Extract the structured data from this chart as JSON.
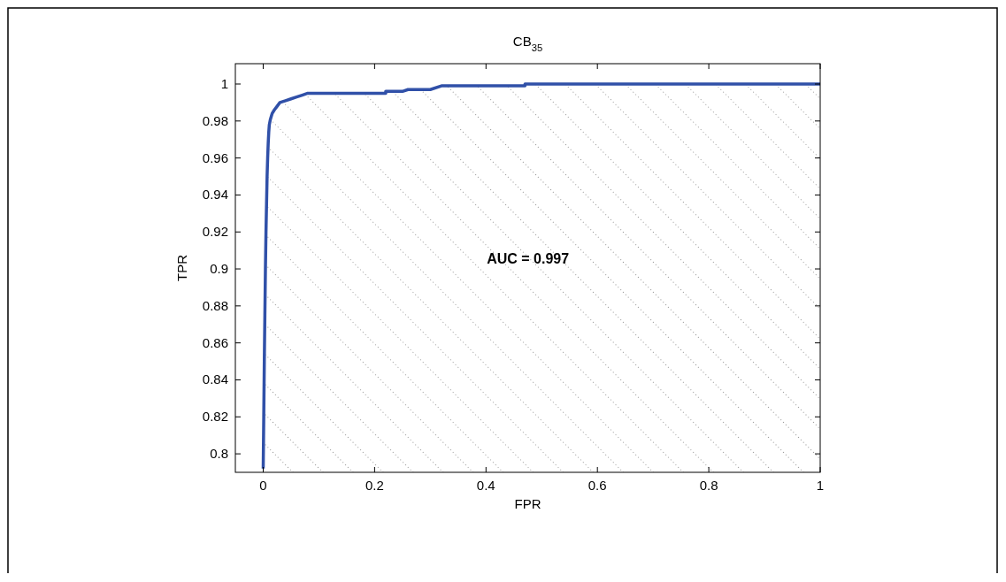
{
  "chart_data": {
    "type": "line",
    "title": "CB$_{35}$",
    "xlabel": "FPR",
    "ylabel": "TPR",
    "annotations": [
      "AUC = 0.997"
    ],
    "xlim": [
      -0.05,
      1
    ],
    "ylim": [
      0.79,
      1.011
    ],
    "xticks": [
      0,
      0.2,
      0.4,
      0.6,
      0.8,
      1
    ],
    "yticks": [
      {
        "value": 0.8,
        "label": "0.8"
      },
      0.82,
      0.84,
      0.86,
      0.88,
      {
        "value": 0.9,
        "label": "0.9"
      },
      0.92,
      0.94,
      0.96,
      0.98,
      1
    ],
    "grid": false,
    "series": [
      {
        "color": "#3050a8",
        "x": [
          0,
          0.001,
          0.002,
          0.003,
          0.004,
          0.005,
          0.006,
          0.007,
          0.008,
          0.009,
          0.01,
          0.011,
          0.013,
          0.016,
          0.02,
          0.025,
          0.03,
          0.04,
          0.05,
          0.06,
          0.07,
          0.08,
          0.15,
          0.22,
          0.22,
          0.25,
          0.26,
          0.3,
          0.32,
          0.47,
          0.47,
          1
        ],
        "values": [
          0.792,
          0.82,
          0.85,
          0.875,
          0.9,
          0.92,
          0.935,
          0.95,
          0.96,
          0.968,
          0.974,
          0.978,
          0.981,
          0.984,
          0.986,
          0.988,
          0.99,
          0.991,
          0.992,
          0.993,
          0.994,
          0.995,
          0.995,
          0.995,
          0.996,
          0.996,
          0.997,
          0.997,
          0.999,
          0.999,
          1,
          1
        ]
      }
    ]
  }
}
